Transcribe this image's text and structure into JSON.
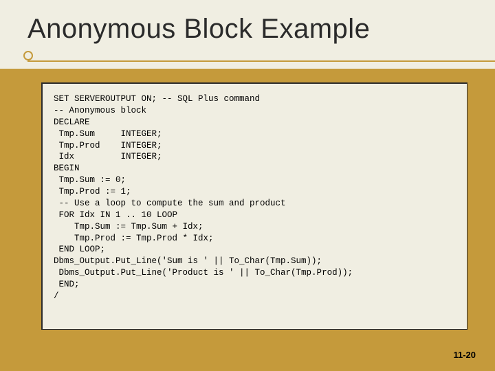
{
  "slide": {
    "title": "Anonymous Block Example",
    "page_number": "11-20",
    "colors": {
      "background": "#c59a3b",
      "panel": "#f0eee2",
      "text": "#000000",
      "title_text": "#2b2b2b",
      "underline": "#c59a3b"
    },
    "code_lines": [
      "SET SERVEROUTPUT ON; -- SQL Plus command",
      "-- Anonymous block",
      "DECLARE",
      " Tmp.Sum     INTEGER;",
      " Tmp.Prod    INTEGER;",
      " Idx         INTEGER;",
      "BEGIN",
      " Tmp.Sum := 0;",
      " Tmp.Prod := 1;",
      " -- Use a loop to compute the sum and product",
      " FOR Idx IN 1 .. 10 LOOP",
      "    Tmp.Sum := Tmp.Sum + Idx;",
      "    Tmp.Prod := Tmp.Prod * Idx;",
      " END LOOP;",
      "Dbms_Output.Put_Line('Sum is ' || To_Char(Tmp.Sum));",
      " Dbms_Output.Put_Line('Product is ' || To_Char(Tmp.Prod));",
      " END;",
      "/"
    ]
  }
}
